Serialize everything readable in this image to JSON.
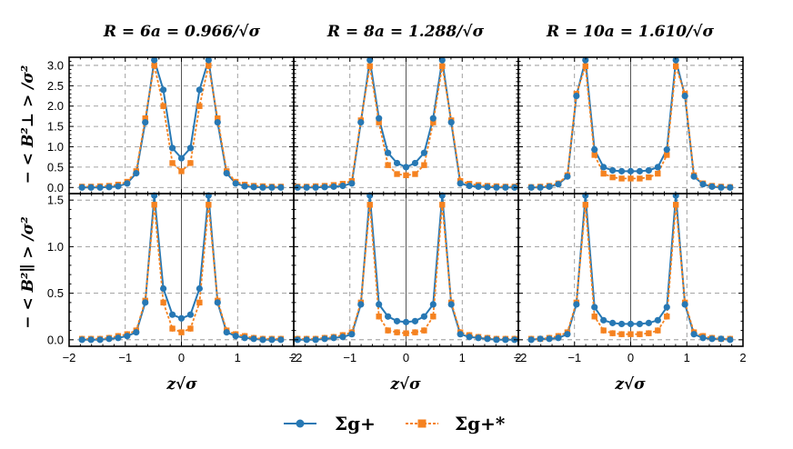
{
  "figure": {
    "column_titles": [
      "R = 6a = 0.966/√σ",
      "R = 8a = 1.288/√σ",
      "R = 10a = 1.610/√σ"
    ],
    "row_ylabels": [
      "− < B²⊥ > /σ²",
      "− < B²∥ > /σ²"
    ],
    "xlabel": "z√σ",
    "legend": [
      "Σg+",
      "Σg+*"
    ],
    "colors": {
      "sigma": "#2778b4",
      "sigma_star": "#f58220",
      "grid": "#888888"
    }
  },
  "chart_data": [
    {
      "type": "line",
      "panel": "top-left",
      "title": "R = 6a = 0.966/√σ",
      "ylabel": "− < B²⊥ > /σ²",
      "xlabel": "",
      "xlim": [
        -2,
        2
      ],
      "ylim": [
        -0.15,
        3.2
      ],
      "xticks": [
        -2,
        -1,
        0,
        1,
        2
      ],
      "yticks": [
        0.0,
        0.5,
        1.0,
        1.5,
        2.0,
        2.5,
        3.0
      ],
      "x": [
        -1.771,
        -1.61,
        -1.449,
        -1.288,
        -1.127,
        -0.966,
        -0.805,
        -0.644,
        -0.483,
        -0.322,
        -0.161,
        0.0,
        0.161,
        0.322,
        0.483,
        0.644,
        0.805,
        0.966,
        1.127,
        1.288,
        1.449,
        1.61,
        1.771
      ],
      "series": [
        {
          "name": "Σg+",
          "values": [
            0.0,
            0.0,
            0.0,
            0.01,
            0.03,
            0.1,
            0.35,
            1.6,
            3.13,
            2.4,
            0.97,
            0.72,
            0.97,
            2.4,
            3.13,
            1.6,
            0.35,
            0.1,
            0.03,
            0.01,
            0.0,
            0.0,
            0.0
          ]
        },
        {
          "name": "Σg+*",
          "values": [
            0.02,
            0.02,
            0.03,
            0.04,
            0.07,
            0.14,
            0.4,
            1.7,
            3.0,
            2.0,
            0.6,
            0.4,
            0.6,
            2.0,
            3.0,
            1.7,
            0.4,
            0.14,
            0.07,
            0.04,
            0.03,
            0.02,
            0.02
          ]
        }
      ]
    },
    {
      "type": "line",
      "panel": "top-middle",
      "title": "R = 8a = 1.288/√σ",
      "ylabel": "",
      "xlabel": "",
      "xlim": [
        -2,
        2
      ],
      "ylim": [
        -0.15,
        3.2
      ],
      "xticks": [
        -2,
        -1,
        0,
        1,
        2
      ],
      "yticks": [
        0.0,
        0.5,
        1.0,
        1.5,
        2.0,
        2.5,
        3.0
      ],
      "x": [
        -1.932,
        -1.771,
        -1.61,
        -1.449,
        -1.288,
        -1.127,
        -0.966,
        -0.805,
        -0.644,
        -0.483,
        -0.322,
        -0.161,
        0.0,
        0.161,
        0.322,
        0.483,
        0.644,
        0.805,
        0.966,
        1.127,
        1.288,
        1.449,
        1.61,
        1.771,
        1.932
      ],
      "series": [
        {
          "name": "Σg+",
          "values": [
            0.0,
            0.0,
            0.0,
            0.01,
            0.02,
            0.04,
            0.1,
            1.6,
            3.13,
            1.7,
            0.85,
            0.6,
            0.5,
            0.6,
            0.85,
            1.7,
            3.13,
            1.6,
            0.1,
            0.04,
            0.02,
            0.01,
            0.0,
            0.0,
            0.0
          ]
        },
        {
          "name": "Σg+*",
          "values": [
            0.02,
            0.02,
            0.03,
            0.04,
            0.06,
            0.09,
            0.16,
            1.65,
            2.98,
            1.6,
            0.55,
            0.33,
            0.3,
            0.33,
            0.55,
            1.6,
            2.98,
            1.65,
            0.16,
            0.09,
            0.06,
            0.04,
            0.03,
            0.02,
            0.02
          ]
        }
      ]
    },
    {
      "type": "line",
      "panel": "top-right",
      "title": "R = 10a = 1.610/√σ",
      "ylabel": "",
      "xlabel": "",
      "xlim": [
        -2,
        2
      ],
      "ylim": [
        -0.15,
        3.2
      ],
      "xticks": [
        -2,
        -1,
        0,
        1,
        2
      ],
      "yticks": [
        0.0,
        0.5,
        1.0,
        1.5,
        2.0,
        2.5,
        3.0
      ],
      "x": [
        -1.771,
        -1.61,
        -1.449,
        -1.288,
        -1.127,
        -0.966,
        -0.805,
        -0.644,
        -0.483,
        -0.322,
        -0.161,
        0.0,
        0.161,
        0.322,
        0.483,
        0.644,
        0.805,
        0.966,
        1.127,
        1.288,
        1.449,
        1.61,
        1.771
      ],
      "series": [
        {
          "name": "Σg+",
          "values": [
            0.0,
            0.0,
            0.02,
            0.08,
            0.27,
            2.25,
            3.13,
            0.93,
            0.5,
            0.42,
            0.4,
            0.4,
            0.4,
            0.42,
            0.5,
            0.93,
            3.13,
            2.25,
            0.27,
            0.08,
            0.02,
            0.0,
            0.0
          ]
        },
        {
          "name": "Σg+*",
          "values": [
            0.01,
            0.02,
            0.04,
            0.1,
            0.3,
            2.3,
            2.98,
            0.8,
            0.34,
            0.25,
            0.22,
            0.22,
            0.22,
            0.25,
            0.34,
            0.8,
            2.98,
            2.3,
            0.3,
            0.1,
            0.04,
            0.02,
            0.01
          ]
        }
      ]
    },
    {
      "type": "line",
      "panel": "bottom-left",
      "title": "",
      "ylabel": "− < B²∥ > /σ²",
      "xlabel": "z√σ",
      "xlim": [
        -2,
        2
      ],
      "ylim": [
        -0.07,
        1.57
      ],
      "xticks": [
        -2,
        -1,
        0,
        1,
        2
      ],
      "yticks": [
        0.0,
        0.5,
        1.0,
        1.5
      ],
      "x": [
        -1.771,
        -1.61,
        -1.449,
        -1.288,
        -1.127,
        -0.966,
        -0.805,
        -0.644,
        -0.483,
        -0.322,
        -0.161,
        0.0,
        0.161,
        0.322,
        0.483,
        0.644,
        0.805,
        0.966,
        1.127,
        1.288,
        1.449,
        1.61,
        1.771
      ],
      "series": [
        {
          "name": "Σg+",
          "values": [
            0.0,
            0.0,
            0.0,
            0.01,
            0.02,
            0.04,
            0.08,
            0.4,
            1.55,
            0.55,
            0.27,
            0.23,
            0.27,
            0.55,
            1.55,
            0.4,
            0.08,
            0.04,
            0.02,
            0.01,
            0.0,
            0.0,
            0.0
          ]
        },
        {
          "name": "Σg+*",
          "values": [
            0.01,
            0.01,
            0.01,
            0.02,
            0.04,
            0.06,
            0.1,
            0.42,
            1.45,
            0.4,
            0.12,
            0.08,
            0.12,
            0.4,
            1.45,
            0.42,
            0.1,
            0.06,
            0.04,
            0.02,
            0.01,
            0.01,
            0.01
          ]
        }
      ]
    },
    {
      "type": "line",
      "panel": "bottom-middle",
      "title": "",
      "ylabel": "",
      "xlabel": "z√σ",
      "xlim": [
        -2,
        2
      ],
      "ylim": [
        -0.07,
        1.57
      ],
      "xticks": [
        -2,
        -1,
        0,
        1,
        2
      ],
      "yticks": [
        0.0,
        0.5,
        1.0,
        1.5
      ],
      "x": [
        -1.932,
        -1.771,
        -1.61,
        -1.449,
        -1.288,
        -1.127,
        -0.966,
        -0.805,
        -0.644,
        -0.483,
        -0.322,
        -0.161,
        0.0,
        0.161,
        0.322,
        0.483,
        0.644,
        0.805,
        0.966,
        1.127,
        1.288,
        1.449,
        1.61,
        1.771,
        1.932
      ],
      "series": [
        {
          "name": "Σg+",
          "values": [
            0.0,
            0.0,
            0.0,
            0.01,
            0.02,
            0.03,
            0.06,
            0.38,
            1.55,
            0.38,
            0.25,
            0.2,
            0.19,
            0.2,
            0.25,
            0.38,
            1.55,
            0.38,
            0.06,
            0.03,
            0.02,
            0.01,
            0.0,
            0.0,
            0.0
          ]
        },
        {
          "name": "Σg+*",
          "values": [
            0.01,
            0.01,
            0.01,
            0.02,
            0.03,
            0.05,
            0.08,
            0.4,
            1.45,
            0.25,
            0.1,
            0.08,
            0.07,
            0.08,
            0.1,
            0.25,
            1.45,
            0.4,
            0.08,
            0.05,
            0.03,
            0.02,
            0.01,
            0.01,
            0.01
          ]
        }
      ]
    },
    {
      "type": "line",
      "panel": "bottom-right",
      "title": "",
      "ylabel": "",
      "xlabel": "z√σ",
      "xlim": [
        -2,
        2
      ],
      "ylim": [
        -0.07,
        1.57
      ],
      "xticks": [
        -2,
        -1,
        0,
        1,
        2
      ],
      "yticks": [
        0.0,
        0.5,
        1.0,
        1.5
      ],
      "x": [
        -1.771,
        -1.61,
        -1.449,
        -1.288,
        -1.127,
        -0.966,
        -0.805,
        -0.644,
        -0.483,
        -0.322,
        -0.161,
        0.0,
        0.161,
        0.322,
        0.483,
        0.644,
        0.805,
        0.966,
        1.127,
        1.288,
        1.449,
        1.61,
        1.771
      ],
      "series": [
        {
          "name": "Σg+",
          "values": [
            0.0,
            0.01,
            0.01,
            0.02,
            0.06,
            0.38,
            1.55,
            0.35,
            0.21,
            0.18,
            0.17,
            0.17,
            0.17,
            0.18,
            0.21,
            0.35,
            1.55,
            0.38,
            0.06,
            0.02,
            0.01,
            0.01,
            0.0
          ]
        },
        {
          "name": "Σg+*",
          "values": [
            0.01,
            0.01,
            0.02,
            0.04,
            0.08,
            0.4,
            1.45,
            0.25,
            0.1,
            0.07,
            0.06,
            0.06,
            0.06,
            0.07,
            0.1,
            0.25,
            1.45,
            0.4,
            0.08,
            0.04,
            0.02,
            0.01,
            0.01
          ]
        }
      ]
    }
  ]
}
